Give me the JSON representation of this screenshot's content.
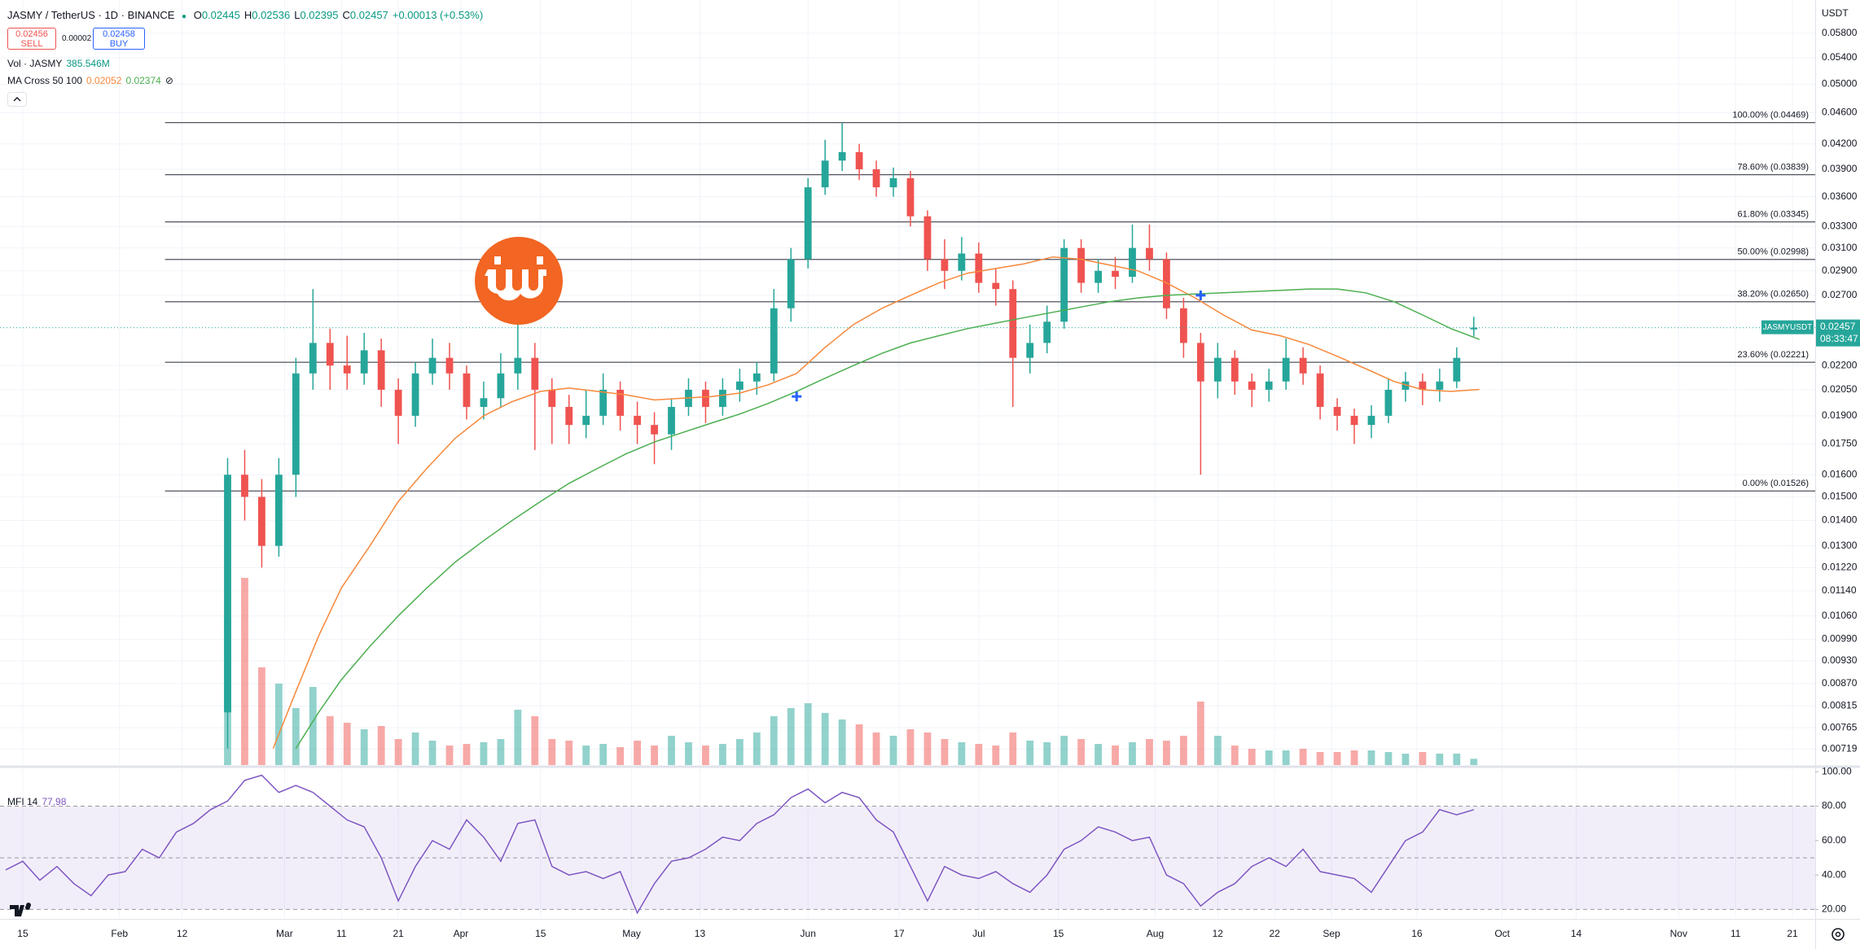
{
  "header": {
    "symbol": "JASMY / TetherUS · 1D · BINANCE",
    "ohlc_labels": [
      "O",
      "H",
      "L",
      "C"
    ],
    "change": "+0.00013 (+0.53%)",
    "sell": {
      "price": "0.02456",
      "label": "SELL"
    },
    "spread": "0.00002",
    "buy": {
      "price": "0.02458",
      "label": "BUY"
    }
  },
  "chart_data": [
    {
      "type": "candlestick",
      "x": [
        50,
        53,
        56,
        59,
        62,
        65,
        68,
        71,
        74,
        77,
        80,
        83,
        86,
        89,
        92,
        95,
        98,
        101,
        104,
        107,
        110,
        113,
        116,
        119,
        122,
        125,
        128,
        131,
        134,
        137,
        140,
        143,
        146,
        149,
        152,
        155,
        158,
        161,
        164,
        167,
        170,
        173,
        176,
        179,
        182,
        185,
        188,
        191,
        194,
        197,
        200,
        203,
        206,
        209,
        212,
        215,
        218,
        221,
        224,
        227,
        230,
        233,
        236,
        239,
        242,
        245,
        248,
        251,
        254,
        257,
        260,
        263,
        266,
        269
      ],
      "open": [
        0.008,
        0.016,
        0.015,
        0.013,
        0.016,
        0.0215,
        0.0235,
        0.022,
        0.0215,
        0.023,
        0.0205,
        0.019,
        0.0215,
        0.0225,
        0.0215,
        0.0195,
        0.02,
        0.0215,
        0.0225,
        0.0205,
        0.0195,
        0.0185,
        0.019,
        0.0205,
        0.019,
        0.0185,
        0.018,
        0.0195,
        0.0205,
        0.0195,
        0.0205,
        0.021,
        0.0215,
        0.026,
        0.03,
        0.037,
        0.04,
        0.041,
        0.039,
        0.037,
        0.038,
        0.034,
        0.03,
        0.029,
        0.0305,
        0.028,
        0.0275,
        0.0225,
        0.0235,
        0.025,
        0.031,
        0.028,
        0.029,
        0.0285,
        0.031,
        0.03,
        0.026,
        0.0235,
        0.021,
        0.0225,
        0.021,
        0.0205,
        0.021,
        0.0225,
        0.0215,
        0.0195,
        0.019,
        0.0185,
        0.019,
        0.0205,
        0.021,
        0.0205,
        0.021,
        0.02445
      ],
      "high": [
        0.0168,
        0.0172,
        0.0158,
        0.0168,
        0.0225,
        0.0275,
        0.0245,
        0.024,
        0.0242,
        0.0238,
        0.0212,
        0.0222,
        0.0238,
        0.0235,
        0.022,
        0.021,
        0.0228,
        0.0275,
        0.0235,
        0.0212,
        0.0202,
        0.0205,
        0.0215,
        0.021,
        0.0198,
        0.0192,
        0.02,
        0.0212,
        0.021,
        0.0212,
        0.0218,
        0.0222,
        0.0275,
        0.031,
        0.038,
        0.0425,
        0.0447,
        0.042,
        0.04,
        0.0392,
        0.0388,
        0.0346,
        0.0318,
        0.032,
        0.0315,
        0.0292,
        0.0282,
        0.0248,
        0.0262,
        0.0318,
        0.0318,
        0.03,
        0.0302,
        0.0332,
        0.0332,
        0.0306,
        0.0268,
        0.0242,
        0.0235,
        0.023,
        0.0215,
        0.0218,
        0.0238,
        0.0232,
        0.022,
        0.02,
        0.0194,
        0.0196,
        0.0212,
        0.0216,
        0.0215,
        0.0218,
        0.0232,
        0.02536
      ],
      "low": [
        0.0072,
        0.014,
        0.0122,
        0.0126,
        0.015,
        0.0205,
        0.0205,
        0.0205,
        0.0208,
        0.0195,
        0.0175,
        0.0184,
        0.0208,
        0.0205,
        0.0188,
        0.0188,
        0.0195,
        0.0205,
        0.0172,
        0.0175,
        0.0175,
        0.0178,
        0.0185,
        0.0182,
        0.0175,
        0.0165,
        0.0172,
        0.019,
        0.0186,
        0.019,
        0.0198,
        0.0202,
        0.021,
        0.025,
        0.0292,
        0.0362,
        0.0388,
        0.0378,
        0.036,
        0.036,
        0.033,
        0.029,
        0.0275,
        0.0282,
        0.0272,
        0.0262,
        0.0195,
        0.0215,
        0.0228,
        0.0245,
        0.0272,
        0.0272,
        0.0275,
        0.028,
        0.029,
        0.0252,
        0.0225,
        0.016,
        0.02,
        0.0202,
        0.0195,
        0.0198,
        0.0205,
        0.0208,
        0.0188,
        0.0182,
        0.0175,
        0.0178,
        0.0186,
        0.0198,
        0.0196,
        0.0198,
        0.0206,
        0.02395
      ],
      "close": [
        0.016,
        0.015,
        0.013,
        0.016,
        0.0215,
        0.0235,
        0.022,
        0.0215,
        0.023,
        0.0205,
        0.019,
        0.0215,
        0.0225,
        0.0215,
        0.0195,
        0.02,
        0.0215,
        0.0225,
        0.0205,
        0.0195,
        0.0185,
        0.019,
        0.0205,
        0.019,
        0.0185,
        0.018,
        0.0195,
        0.0205,
        0.0195,
        0.0205,
        0.021,
        0.0215,
        0.026,
        0.03,
        0.037,
        0.04,
        0.041,
        0.039,
        0.037,
        0.038,
        0.034,
        0.03,
        0.029,
        0.0305,
        0.028,
        0.0275,
        0.0225,
        0.0235,
        0.025,
        0.031,
        0.028,
        0.029,
        0.0285,
        0.031,
        0.03,
        0.026,
        0.0235,
        0.021,
        0.0225,
        0.021,
        0.0205,
        0.021,
        0.0225,
        0.0215,
        0.0195,
        0.019,
        0.0185,
        0.019,
        0.0205,
        0.021,
        0.0205,
        0.021,
        0.0225,
        0.02457
      ],
      "up_color": "#26a69a",
      "down_color": "#ef5350",
      "volume": {
        "legend": "Vol · JASMY",
        "legend_value": "385.546M",
        "values": [
          9000,
          11500,
          6000,
          5000,
          3500,
          4800,
          3000,
          2600,
          2200,
          2400,
          1600,
          2000,
          1500,
          1200,
          1300,
          1400,
          1600,
          3400,
          3000,
          1600,
          1500,
          1200,
          1300,
          1100,
          1500,
          1200,
          1800,
          1400,
          1200,
          1300,
          1600,
          2000,
          3000,
          3500,
          3800,
          3200,
          2800,
          2500,
          2000,
          1800,
          2200,
          2000,
          1600,
          1400,
          1300,
          1200,
          2000,
          1500,
          1400,
          1800,
          1600,
          1300,
          1200,
          1400,
          1600,
          1500,
          1800,
          3900,
          1800,
          1200,
          1000,
          900,
          900,
          1000,
          800,
          800,
          900,
          900,
          800,
          700,
          800,
          700,
          700,
          385.546
        ]
      },
      "ma_cross": {
        "legend": "MA Cross 50 100",
        "series": [
          {
            "color": "#f7883b",
            "x": [
              58,
              62,
              66,
              70,
              75,
              80,
              85,
              90,
              95,
              100,
              105,
              110,
              115,
              120,
              125,
              130,
              135,
              140,
              145,
              150,
              155,
              160,
              165,
              170,
              175,
              180,
              185,
              190,
              195,
              200,
              205,
              210,
              215,
              220,
              225,
              230,
              235,
              240,
              245,
              250,
              255,
              260,
              265,
              270
            ],
            "values": [
              0.0072,
              0.0085,
              0.01,
              0.0115,
              0.013,
              0.0148,
              0.0163,
              0.0178,
              0.019,
              0.0198,
              0.0204,
              0.0206,
              0.0204,
              0.0202,
              0.0199,
              0.02,
              0.0201,
              0.0203,
              0.0208,
              0.0215,
              0.0232,
              0.0248,
              0.026,
              0.027,
              0.028,
              0.0288,
              0.0292,
              0.0296,
              0.0302,
              0.03,
              0.0295,
              0.029,
              0.028,
              0.0268,
              0.0255,
              0.0244,
              0.024,
              0.0234,
              0.0226,
              0.0218,
              0.021,
              0.0205,
              0.0204,
              0.02052
            ]
          },
          {
            "color": "#4caf50",
            "x": [
              62,
              66,
              70,
              75,
              80,
              85,
              90,
              95,
              100,
              105,
              110,
              115,
              120,
              125,
              130,
              135,
              140,
              145,
              150,
              155,
              160,
              165,
              170,
              175,
              180,
              185,
              190,
              195,
              200,
              205,
              210,
              215,
              220,
              225,
              230,
              235,
              240,
              245,
              250,
              255,
              260,
              265,
              270
            ],
            "values": [
              0.0072,
              0.008,
              0.0088,
              0.0097,
              0.0106,
              0.0115,
              0.0124,
              0.0132,
              0.014,
              0.0148,
              0.0156,
              0.0163,
              0.017,
              0.0176,
              0.0181,
              0.0186,
              0.0191,
              0.0197,
              0.0204,
              0.0212,
              0.022,
              0.0228,
              0.0235,
              0.024,
              0.0245,
              0.0249,
              0.0253,
              0.0257,
              0.0261,
              0.0265,
              0.0268,
              0.027,
              0.0271,
              0.0272,
              0.0273,
              0.0274,
              0.0275,
              0.0275,
              0.0272,
              0.0265,
              0.0255,
              0.0245,
              0.02374
            ]
          }
        ],
        "crosses": {
          "color": "#2962ff",
          "x": [
            150,
            221
          ],
          "values": [
            0.0201,
            0.027
          ]
        }
      },
      "fib": {
        "color": "#50535e",
        "start": 39,
        "levels": [
          {
            "value": 0.04469,
            "label": "100.00% (0.04469)"
          },
          {
            "value": 0.03839,
            "label": "78.60% (0.03839)"
          },
          {
            "value": 0.03345,
            "label": "61.80% (0.03345)"
          },
          {
            "value": 0.02998,
            "label": "50.00% (0.02998)"
          },
          {
            "value": 0.0265,
            "label": "38.20% (0.02650)"
          },
          {
            "value": 0.02221,
            "label": "23.60% (0.02221)"
          },
          {
            "value": 0.01526,
            "label": "0.00% (0.01526)"
          }
        ]
      },
      "last_price": {
        "symbol": "JASMYUSDT",
        "countdown": "08:33:47",
        "color": "#26a69a"
      },
      "y_axis_title": "USDT",
      "xlim": [
        10,
        329
      ],
      "xticks": [
        {
          "value": 14,
          "label": "15"
        },
        {
          "value": 31,
          "label": "Feb"
        },
        {
          "value": 42,
          "label": "12"
        },
        {
          "value": 60,
          "label": "Mar"
        },
        {
          "value": 70,
          "label": "11"
        },
        {
          "value": 80,
          "label": "21"
        },
        {
          "value": 91,
          "label": "Apr"
        },
        {
          "value": 105,
          "label": "15"
        },
        {
          "value": 121,
          "label": "May"
        },
        {
          "value": 133,
          "label": "13"
        },
        {
          "value": 152,
          "label": "Jun"
        },
        {
          "value": 168,
          "label": "17"
        },
        {
          "value": 182,
          "label": "Jul"
        },
        {
          "value": 196,
          "label": "15"
        },
        {
          "value": 213,
          "label": "Aug"
        },
        {
          "value": 224,
          "label": "12"
        },
        {
          "value": 234,
          "label": "22"
        },
        {
          "value": 244,
          "label": "Sep"
        },
        {
          "value": 259,
          "label": "16"
        },
        {
          "value": 274,
          "label": "Oct"
        },
        {
          "value": 287,
          "label": "14"
        },
        {
          "value": 305,
          "label": "Nov"
        },
        {
          "value": 315,
          "label": "11"
        },
        {
          "value": 325,
          "label": "21"
        }
      ],
      "ylim": [
        0.00686,
        0.0639
      ],
      "log_scale": true,
      "grid": true,
      "yticks": [
        {
          "value": 0.058,
          "label": "0.05800"
        },
        {
          "value": 0.054,
          "label": "0.05400"
        },
        {
          "value": 0.05,
          "label": "0.05000"
        },
        {
          "value": 0.046,
          "label": "0.04600"
        },
        {
          "value": 0.042,
          "label": "0.04200"
        },
        {
          "value": 0.039,
          "label": "0.03900"
        },
        {
          "value": 0.036,
          "label": "0.03600"
        },
        {
          "value": 0.033,
          "label": "0.03300"
        },
        {
          "value": 0.031,
          "label": "0.03100"
        },
        {
          "value": 0.029,
          "label": "0.02900"
        },
        {
          "value": 0.027,
          "label": "0.02700"
        },
        {
          "value": 0.022,
          "label": "0.02200"
        },
        {
          "value": 0.0205,
          "label": "0.02050"
        },
        {
          "value": 0.019,
          "label": "0.01900"
        },
        {
          "value": 0.0175,
          "label": "0.01750"
        },
        {
          "value": 0.016,
          "label": "0.01600"
        },
        {
          "value": 0.015,
          "label": "0.01500"
        },
        {
          "value": 0.014,
          "label": "0.01400"
        },
        {
          "value": 0.013,
          "label": "0.01300"
        },
        {
          "value": 0.0122,
          "label": "0.01220"
        },
        {
          "value": 0.0114,
          "label": "0.01140"
        },
        {
          "value": 0.0106,
          "label": "0.01060"
        },
        {
          "value": 0.0099,
          "label": "0.00990"
        },
        {
          "value": 0.0093,
          "label": "0.00930"
        },
        {
          "value": 0.0087,
          "label": "0.00870"
        },
        {
          "value": 0.00815,
          "label": "0.00815"
        },
        {
          "value": 0.00765,
          "label": "0.00765"
        },
        {
          "value": 0.00719,
          "label": "0.00719"
        }
      ]
    },
    {
      "type": "line",
      "legend": "MFI 14",
      "color": "#7e57c2",
      "x": [
        11,
        14,
        17,
        20,
        23,
        26,
        29,
        32,
        35,
        38,
        41,
        44,
        47,
        50,
        53,
        56,
        59,
        62,
        65,
        68,
        71,
        74,
        77,
        80,
        83,
        86,
        89,
        92,
        95,
        98,
        101,
        104,
        107,
        110,
        113,
        116,
        119,
        122,
        125,
        128,
        131,
        134,
        137,
        140,
        143,
        146,
        149,
        152,
        155,
        158,
        161,
        164,
        167,
        170,
        173,
        176,
        179,
        182,
        185,
        188,
        191,
        194,
        197,
        200,
        203,
        206,
        209,
        212,
        215,
        218,
        221,
        224,
        227,
        230,
        233,
        236,
        239,
        242,
        245,
        248,
        251,
        254,
        257,
        260,
        263,
        266,
        269
      ],
      "values": [
        43,
        48,
        37,
        45,
        35,
        28,
        40,
        42,
        55,
        50,
        65,
        70,
        78,
        83,
        95,
        98,
        88,
        92,
        88,
        80,
        72,
        68,
        50,
        25,
        45,
        60,
        55,
        72,
        62,
        48,
        70,
        72,
        45,
        40,
        42,
        38,
        42,
        18,
        35,
        48,
        50,
        55,
        62,
        60,
        70,
        75,
        85,
        90,
        82,
        88,
        85,
        72,
        65,
        45,
        25,
        45,
        40,
        38,
        42,
        35,
        30,
        40,
        55,
        60,
        68,
        65,
        60,
        62,
        40,
        35,
        22,
        30,
        35,
        45,
        50,
        45,
        55,
        42,
        40,
        38,
        30,
        45,
        60,
        65,
        78,
        75,
        77.98
      ],
      "band": [
        20,
        80
      ],
      "levels": [
        80,
        50,
        20
      ],
      "ylim": [
        15,
        102
      ],
      "yticks": [
        {
          "value": 100,
          "label": "100.00"
        },
        {
          "value": 80,
          "label": "80.00"
        },
        {
          "value": 60,
          "label": "60.00"
        },
        {
          "value": 40,
          "label": "40.00"
        },
        {
          "value": 20,
          "label": "20.00"
        }
      ]
    }
  ]
}
